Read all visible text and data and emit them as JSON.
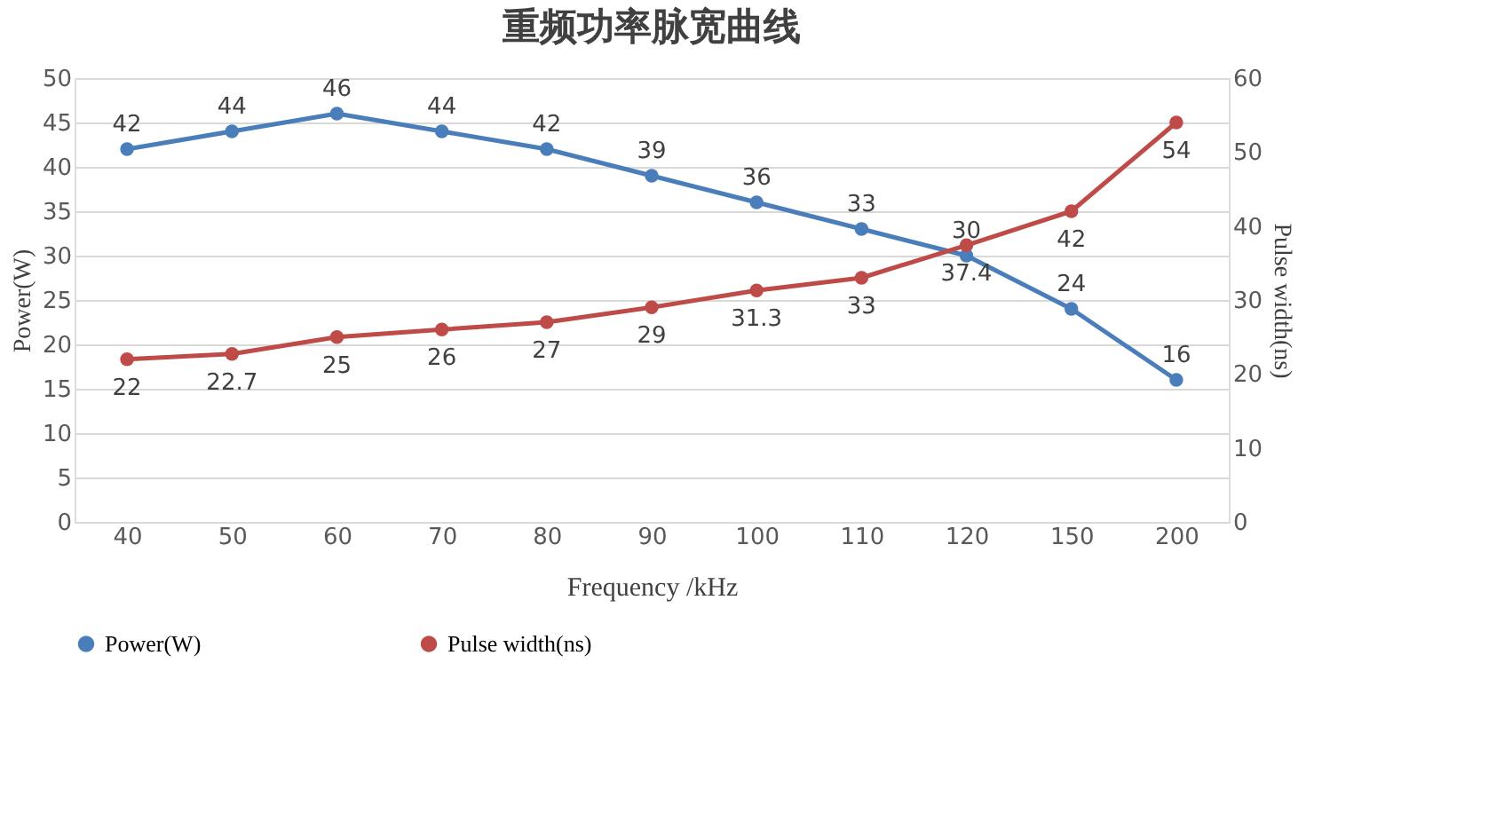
{
  "chart_data": {
    "type": "line",
    "title": "重频功率脉宽曲线",
    "xlabel": "Frequency /kHz",
    "ylabel": "Power(W)",
    "y2label": "Pulse width(ns)",
    "categories": [
      "40",
      "50",
      "60",
      "70",
      "80",
      "90",
      "100",
      "110",
      "120",
      "150",
      "200"
    ],
    "series": [
      {
        "name": "Power(W)",
        "color": "#4a7ebb",
        "values": [
          42,
          44,
          46,
          44,
          42,
          39,
          36,
          33,
          30,
          24,
          16
        ]
      },
      {
        "name": "Pulse width(ns)",
        "color": "#be4b48",
        "axis": "y2",
        "values": [
          22,
          22.7,
          25,
          26,
          27,
          29,
          31.3,
          33,
          37.4,
          42,
          54
        ]
      }
    ],
    "ylim": [
      0,
      50
    ],
    "yticks": [
      0,
      5,
      10,
      15,
      20,
      25,
      30,
      35,
      40,
      45,
      50
    ],
    "y2lim": [
      0,
      60
    ],
    "y2ticks": [
      0,
      10,
      20,
      30,
      40,
      50,
      60
    ],
    "grid": "y",
    "legend": "bottom",
    "marker": "circle",
    "data_labels": true
  }
}
